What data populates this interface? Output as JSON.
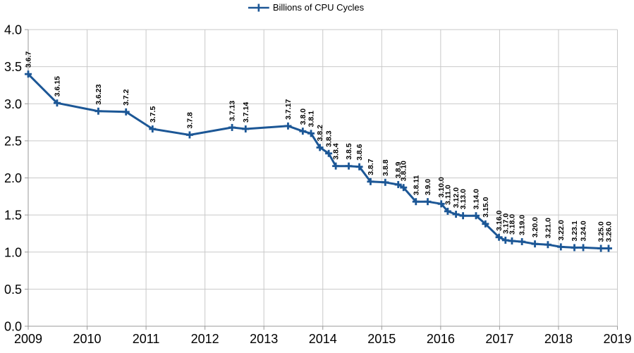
{
  "legend": {
    "label": "Billions of CPU Cycles"
  },
  "colors": {
    "series": "#1c5796",
    "grid": "#c9c9c9",
    "axis": "#999999",
    "text": "#000000",
    "background": "#ffffff"
  },
  "chart_data": {
    "type": "line",
    "title": "",
    "xlabel": "",
    "ylabel": "",
    "grid": true,
    "legend_position": "top-center",
    "marker": "plus",
    "x_axis": {
      "min": 2009,
      "max": 2019,
      "step": 1,
      "tick_labels": [
        "2009",
        "2010",
        "2011",
        "2012",
        "2013",
        "2014",
        "2015",
        "2016",
        "2017",
        "2018",
        "2019"
      ]
    },
    "y_axis": {
      "min": 0,
      "max": 4,
      "step": 0.5,
      "tick_labels": [
        "0.0",
        "0.5",
        "1.0",
        "1.5",
        "2.0",
        "2.5",
        "3.0",
        "3.5",
        "4.0"
      ]
    },
    "series": [
      {
        "name": "Billions of CPU Cycles",
        "points": [
          {
            "label": "3.6.7",
            "x": 2009.0,
            "y": 3.4
          },
          {
            "label": "3.6.15",
            "x": 2009.49,
            "y": 3.01
          },
          {
            "label": "3.6.23",
            "x": 2010.19,
            "y": 2.9
          },
          {
            "label": "3.7.2",
            "x": 2010.66,
            "y": 2.89
          },
          {
            "label": "3.7.5",
            "x": 2011.11,
            "y": 2.66
          },
          {
            "label": "3.7.8",
            "x": 2011.74,
            "y": 2.58
          },
          {
            "label": "3.7.13",
            "x": 2012.46,
            "y": 2.68
          },
          {
            "label": "3.7.14",
            "x": 2012.69,
            "y": 2.66
          },
          {
            "label": "3.7.17",
            "x": 2013.41,
            "y": 2.7
          },
          {
            "label": "3.8.0",
            "x": 2013.66,
            "y": 2.63
          },
          {
            "label": "3.8.1",
            "x": 2013.8,
            "y": 2.6
          },
          {
            "label": "3.8.2",
            "x": 2013.95,
            "y": 2.41
          },
          {
            "label": "3.8.3",
            "x": 2014.1,
            "y": 2.33
          },
          {
            "label": "3.8.4",
            "x": 2014.22,
            "y": 2.16
          },
          {
            "label": "3.8.5",
            "x": 2014.44,
            "y": 2.16
          },
          {
            "label": "3.8.6",
            "x": 2014.62,
            "y": 2.15
          },
          {
            "label": "3.8.7",
            "x": 2014.81,
            "y": 1.95
          },
          {
            "label": "3.8.8",
            "x": 2015.06,
            "y": 1.94
          },
          {
            "label": "3.8.9",
            "x": 2015.28,
            "y": 1.91
          },
          {
            "label": "3.8.10",
            "x": 2015.37,
            "y": 1.87
          },
          {
            "label": "3.8.11",
            "x": 2015.58,
            "y": 1.68
          },
          {
            "label": "3.9.0",
            "x": 2015.78,
            "y": 1.68
          },
          {
            "label": "3.10.0",
            "x": 2016.01,
            "y": 1.65
          },
          {
            "label": "3.11.0",
            "x": 2016.12,
            "y": 1.55
          },
          {
            "label": "3.12.0",
            "x": 2016.26,
            "y": 1.51
          },
          {
            "label": "3.13.0",
            "x": 2016.38,
            "y": 1.49
          },
          {
            "label": "3.14.0",
            "x": 2016.6,
            "y": 1.49
          },
          {
            "label": "3.15.0",
            "x": 2016.76,
            "y": 1.38
          },
          {
            "label": "3.16.0",
            "x": 2016.99,
            "y": 1.2
          },
          {
            "label": "3.17.0",
            "x": 2017.1,
            "y": 1.16
          },
          {
            "label": "3.18.0",
            "x": 2017.21,
            "y": 1.15
          },
          {
            "label": "3.19.0",
            "x": 2017.38,
            "y": 1.14
          },
          {
            "label": "3.20.0",
            "x": 2017.6,
            "y": 1.11
          },
          {
            "label": "3.21.0",
            "x": 2017.82,
            "y": 1.1
          },
          {
            "label": "3.22.0",
            "x": 2018.04,
            "y": 1.07
          },
          {
            "label": "3.23.1",
            "x": 2018.27,
            "y": 1.06
          },
          {
            "label": "3.24.0",
            "x": 2018.42,
            "y": 1.06
          },
          {
            "label": "3.25.0",
            "x": 2018.72,
            "y": 1.05
          },
          {
            "label": "3.26.0",
            "x": 2018.85,
            "y": 1.05
          }
        ]
      }
    ]
  }
}
